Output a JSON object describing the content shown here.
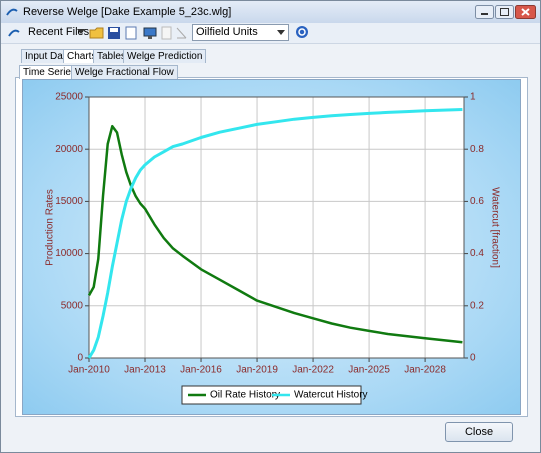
{
  "window": {
    "title": "Reverse Welge [Dake Example 5_23c.wlg]",
    "toolbar": {
      "recent_files": "Recent Files",
      "units": "Oilfield Units"
    },
    "tabs": [
      "Input Data",
      "Charts",
      "Tables",
      "Welge Prediction"
    ],
    "subtabs": [
      "Time Series",
      "Welge Fractional Flow"
    ],
    "close_button": "Close"
  },
  "chart_data": {
    "type": "line",
    "x": [
      "2010-01",
      "2010-04",
      "2010-07",
      "2010-10",
      "2011-01",
      "2011-04",
      "2011-07",
      "2011-10",
      "2012-01",
      "2012-04",
      "2012-07",
      "2012-10",
      "2013-01",
      "2013-07",
      "2014-01",
      "2014-07",
      "2015-01",
      "2016-01",
      "2017-01",
      "2018-01",
      "2019-01",
      "2020-01",
      "2021-01",
      "2022-01",
      "2023-01",
      "2024-01",
      "2025-01",
      "2026-01",
      "2027-01",
      "2028-01",
      "2029-01",
      "2030-01"
    ],
    "xlim": [
      "2010-01",
      "2030-02"
    ],
    "xticks": [
      {
        "value": "2010-01",
        "label": "Jan-2010"
      },
      {
        "value": "2013-01",
        "label": "Jan-2013"
      },
      {
        "value": "2016-01",
        "label": "Jan-2016"
      },
      {
        "value": "2019-01",
        "label": "Jan-2019"
      },
      {
        "value": "2022-01",
        "label": "Jan-2022"
      },
      {
        "value": "2025-01",
        "label": "Jan-2025"
      },
      {
        "value": "2028-01",
        "label": "Jan-2028"
      }
    ],
    "ylabel": "Production Rates",
    "y2label": "Watercut [fraction]",
    "ylim": [
      0,
      25000
    ],
    "yticks": [
      0,
      5000,
      10000,
      15000,
      20000,
      25000
    ],
    "y2lim": [
      0,
      1
    ],
    "y2ticks": [
      0,
      0.2,
      0.4,
      0.6,
      0.8,
      1
    ],
    "grid": true,
    "legend": "bottom",
    "series": [
      {
        "name": "Oil Rate History",
        "color": "#107a10",
        "values": [
          6000,
          6800,
          9500,
          15500,
          20500,
          22200,
          21600,
          19500,
          17800,
          16500,
          15500,
          14800,
          14300,
          12800,
          11500,
          10500,
          9800,
          8500,
          7500,
          6500,
          5500,
          4900,
          4300,
          3800,
          3300,
          2900,
          2600,
          2300,
          2100,
          1900,
          1700,
          1500
        ]
      },
      {
        "name": "Watercut History",
        "color": "#33e6ee",
        "axis": "y2",
        "values": [
          0,
          0.03,
          0.08,
          0.16,
          0.25,
          0.35,
          0.44,
          0.53,
          0.6,
          0.65,
          0.69,
          0.72,
          0.74,
          0.77,
          0.79,
          0.81,
          0.82,
          0.845,
          0.865,
          0.88,
          0.895,
          0.905,
          0.915,
          0.922,
          0.928,
          0.933,
          0.937,
          0.941,
          0.944,
          0.947,
          0.95,
          0.952
        ]
      }
    ]
  }
}
